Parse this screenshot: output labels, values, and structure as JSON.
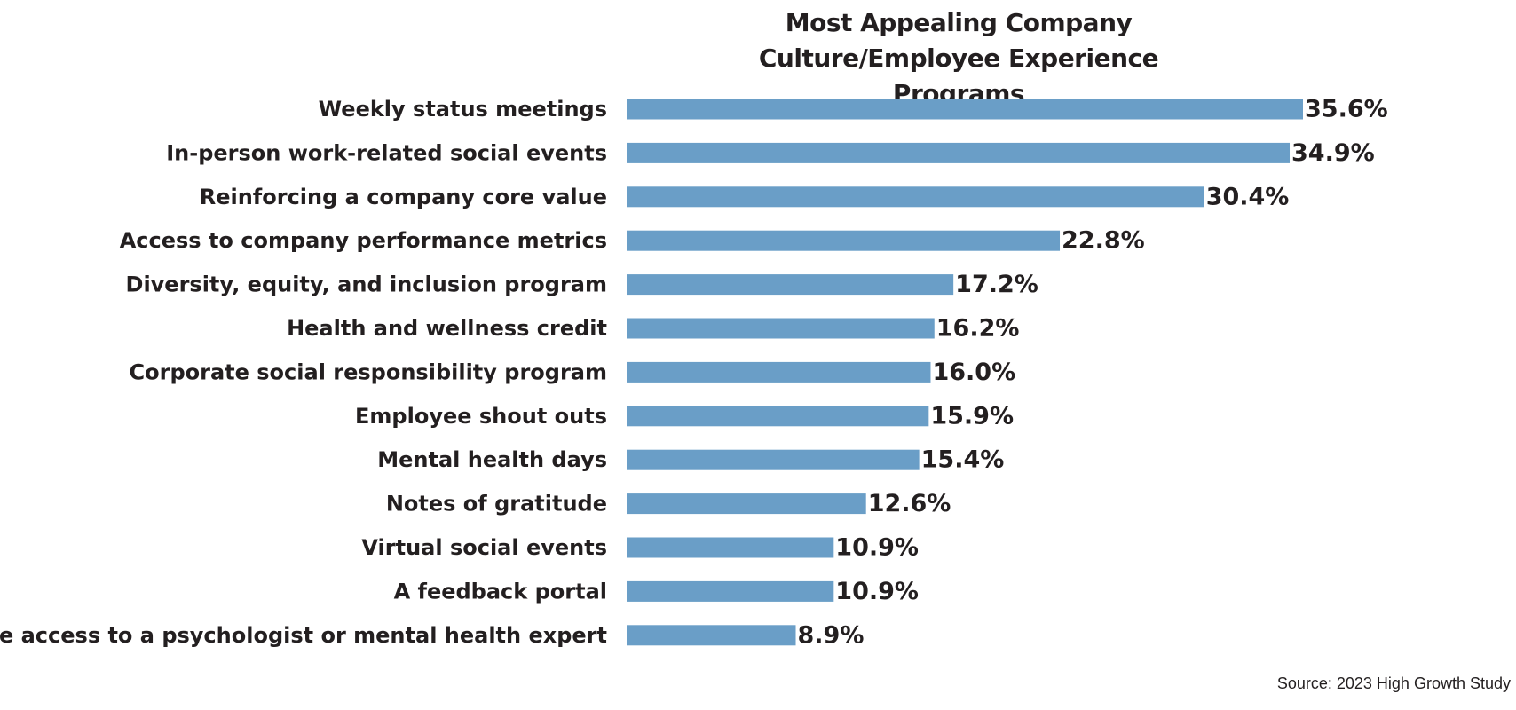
{
  "chart_data": {
    "type": "bar",
    "orientation": "horizontal",
    "title": "Most Appealing Company Culture/Employee Experience Programs",
    "categories": [
      "Weekly status meetings",
      "In-person work-related social events",
      "Reinforcing a company core value",
      "Access to company performance metrics",
      "Diversity, equity, and inclusion program",
      "Health and wellness credit",
      "Corporate social responsibility program",
      "Employee shout outs",
      "Mental health days",
      "Notes of gratitude",
      "Virtual social events",
      "A feedback portal",
      "Free access to a psychologist or mental health expert"
    ],
    "values": [
      35.6,
      34.9,
      30.4,
      22.8,
      17.2,
      16.2,
      16.0,
      15.9,
      15.4,
      12.6,
      10.9,
      10.9,
      8.9
    ],
    "value_labels": [
      "35.6%",
      "34.9%",
      "30.4%",
      "22.8%",
      "17.2%",
      "16.2%",
      "16.0%",
      "15.9%",
      "15.4%",
      "12.6%",
      "10.9%",
      "10.9%",
      "8.9%"
    ],
    "bar_color": "#6a9ec7",
    "grid": false,
    "legend": "none"
  },
  "source": "Source: 2023 High Growth Study"
}
